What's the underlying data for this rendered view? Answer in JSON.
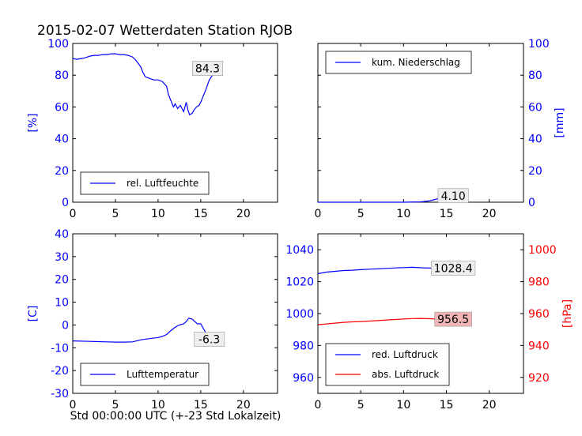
{
  "colors": {
    "blue": "#0000ff",
    "red": "#ff0000",
    "axis": "#000000",
    "annot_bg": "#eeeeee",
    "annot_red_bg": "#f2b5b5"
  },
  "title": "2015-02-07 Wetterdaten Station RJOB",
  "footer_xlabel": "Std 00:00:00 UTC (+-23 Std Lokalzeit)",
  "chart_data": [
    {
      "type": "line",
      "panel": "top-left",
      "xlim": [
        0,
        24
      ],
      "xticks": [
        0,
        5,
        10,
        15,
        20
      ],
      "ylim": [
        0,
        100
      ],
      "yticks": [
        0,
        20,
        40,
        60,
        80,
        100
      ],
      "ylabel": "[%]",
      "legend": "bottom-left",
      "annotation": {
        "text": "84.3",
        "x": 15.8,
        "y": 84.3
      },
      "series": [
        {
          "name": "rel. Luftfeuchte",
          "color": "#0000ff",
          "x": [
            0,
            0.5,
            1,
            1.5,
            2,
            2.5,
            3,
            3.5,
            4,
            4.5,
            5,
            5.5,
            6,
            6.5,
            7,
            7.3,
            7.6,
            8,
            8.2,
            8.5,
            9,
            9.5,
            10,
            10.5,
            11,
            11.2,
            11.5,
            11.8,
            12,
            12.3,
            12.6,
            13,
            13.3,
            13.5,
            13.7,
            14,
            14.2,
            14.5,
            14.8,
            15,
            15.3,
            15.6,
            16,
            16.5,
            17,
            17.3
          ],
          "y": [
            90.5,
            90,
            90.5,
            91,
            92,
            92.5,
            92.5,
            93,
            93,
            93.5,
            93.5,
            93,
            93,
            92.5,
            91.5,
            90,
            88,
            85,
            82,
            79,
            78,
            77,
            77,
            76,
            73,
            68,
            64,
            60,
            62,
            59,
            61,
            57,
            63,
            58,
            55,
            56,
            58,
            60,
            61,
            63,
            67,
            71,
            77,
            81,
            83,
            84.3
          ]
        }
      ]
    },
    {
      "type": "line",
      "panel": "top-right",
      "xlim": [
        0,
        24
      ],
      "xticks": [
        0,
        5,
        10,
        15,
        20
      ],
      "ylim": [
        0,
        100
      ],
      "yticks": [
        0,
        20,
        40,
        60,
        80,
        100
      ],
      "ylabel": "[mm]",
      "legend": "top-left",
      "annotation": {
        "text": "4.10",
        "x": 15.8,
        "y": 4.1
      },
      "series": [
        {
          "name": "kum. Niederschlag",
          "color": "#0000ff",
          "x": [
            0,
            5,
            10,
            12,
            13,
            13.5,
            14,
            14.5,
            15,
            15.5,
            16,
            16.5,
            17,
            17.3
          ],
          "y": [
            0,
            0,
            0,
            0.2,
            0.8,
            1.5,
            2.2,
            2.8,
            3.3,
            3.7,
            3.9,
            4.0,
            4.05,
            4.1
          ]
        }
      ]
    },
    {
      "type": "line",
      "panel": "bottom-left",
      "xlim": [
        0,
        24
      ],
      "xticks": [
        0,
        5,
        10,
        15,
        20
      ],
      "ylim": [
        -30,
        40
      ],
      "yticks": [
        -30,
        -20,
        -10,
        0,
        10,
        20,
        30,
        40
      ],
      "ylabel": "[C]",
      "legend": "bottom-left",
      "annotation": {
        "text": "-6.3",
        "x": 16.0,
        "y": -6.3
      },
      "series": [
        {
          "name": "Lufttemperatur",
          "color": "#0000ff",
          "x": [
            0,
            2,
            4,
            5,
            6,
            7,
            7.5,
            8,
            9,
            10,
            10.5,
            11,
            11.5,
            12,
            12.5,
            13,
            13.3,
            13.6,
            14,
            14.3,
            14.6,
            15,
            15.3,
            15.6
          ],
          "y": [
            -7,
            -7.2,
            -7.4,
            -7.5,
            -7.5,
            -7.4,
            -7.0,
            -6.5,
            -6.0,
            -5.5,
            -5.0,
            -4.2,
            -2.5,
            -1,
            0,
            0.5,
            1.5,
            3.0,
            2.5,
            1.5,
            0.5,
            0.5,
            -1.5,
            -3.5
          ]
        }
      ]
    },
    {
      "type": "line",
      "panel": "bottom-right",
      "xlim": [
        0,
        24
      ],
      "xticks": [
        0,
        5,
        10,
        15,
        20
      ],
      "ylim_left": [
        950,
        1050
      ],
      "yticks_left": [
        960,
        980,
        1000,
        1020,
        1040
      ],
      "ylim_right": [
        910,
        1010
      ],
      "yticks_right": [
        920,
        940,
        960,
        980,
        1000
      ],
      "ylabel_right": "[hPa]",
      "legend": "bottom-left",
      "annotations": [
        {
          "text": "1028.4",
          "x": 15.8,
          "y": 1028.4,
          "axis": "left"
        },
        {
          "text": "956.5",
          "x": 15.8,
          "y": 956.5,
          "axis": "right"
        }
      ],
      "series": [
        {
          "name": "red. Luftdruck",
          "color": "#0000ff",
          "axis": "left",
          "x": [
            0,
            1,
            2,
            3,
            4,
            5,
            6,
            7,
            8,
            9,
            10,
            11,
            12,
            13,
            14,
            15,
            16,
            17,
            17.3
          ],
          "y": [
            1025,
            1026,
            1026.5,
            1027,
            1027.2,
            1027.5,
            1027.8,
            1028,
            1028.3,
            1028.6,
            1028.8,
            1029,
            1028.7,
            1028.5,
            1028.3,
            1028.3,
            1028.4,
            1028.5,
            1028.4
          ]
        },
        {
          "name": "abs. Luftdruck",
          "color": "#ff0000",
          "axis": "right",
          "x": [
            0,
            1,
            2,
            3,
            4,
            5,
            6,
            7,
            8,
            9,
            10,
            11,
            12,
            13,
            14,
            15,
            16,
            17,
            17.3
          ],
          "y": [
            953,
            953.5,
            954,
            954.5,
            954.8,
            955,
            955.3,
            955.6,
            956,
            956.3,
            956.6,
            956.9,
            957,
            956.8,
            956.6,
            956.5,
            956.5,
            956.6,
            956.5
          ]
        }
      ]
    }
  ]
}
